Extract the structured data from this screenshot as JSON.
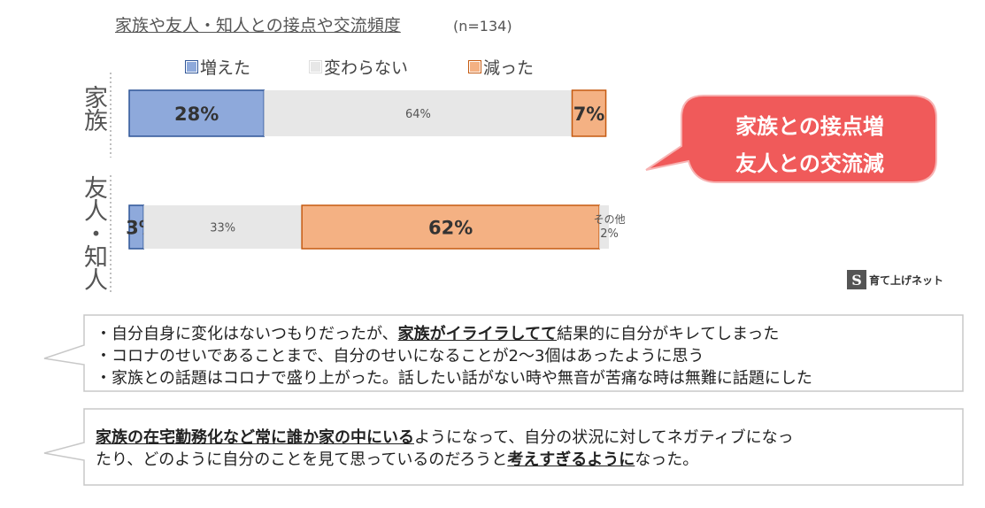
{
  "chart_data": {
    "type": "bar",
    "stacked": true,
    "orientation": "horizontal",
    "title": "家族や友人・知人との接点や交流頻度",
    "note": "(n=134)",
    "categories": [
      "家族",
      "友人・知人"
    ],
    "series": [
      {
        "name": "増えた",
        "color": "#8ea9db",
        "values": [
          28,
          3
        ],
        "labels": [
          "28%",
          "3%"
        ]
      },
      {
        "name": "変わらない",
        "color": "#e7e7e7",
        "values": [
          64,
          33
        ],
        "labels": [
          "64%",
          "33%"
        ]
      },
      {
        "name": "減った",
        "color": "#f4b183",
        "values": [
          7,
          62
        ],
        "labels": [
          "7%",
          "62%"
        ]
      },
      {
        "name": "その他",
        "color": "#e7e7e7",
        "values": [
          0,
          2
        ],
        "labels": [
          "",
          "2%"
        ]
      }
    ],
    "other_label": "その他",
    "xlim": [
      0,
      100
    ]
  },
  "callout": {
    "line1": "家族との接点増",
    "line2": "友人との交流減",
    "color": "#f05a5a"
  },
  "brand": {
    "mark": "S",
    "name": "育て上げネット"
  },
  "quotes": [
    {
      "lines": [
        [
          {
            "t": "・自分自身に変化はないつもりだったが、"
          },
          {
            "t": "家族がイライラしてて",
            "u": true
          },
          {
            "t": "結果的に自分がキレてしまった"
          }
        ],
        [
          {
            "t": "・コロナのせいであることまで、自分のせいになることが2～3個はあったように思う"
          }
        ],
        [
          {
            "t": "・家族との話題はコロナで盛り上がった。話したい話がない時や無音が苦痛な時は無難に話題にした"
          }
        ]
      ]
    },
    {
      "lines": [
        [
          {
            "t": "家族の在宅勤務化など常に誰か家の中にいる",
            "u": true
          },
          {
            "t": "ようになって、自分の状況に対してネガティブになっ"
          }
        ],
        [
          {
            "t": "たり、どのように自分のことを見て思っているのだろうと"
          },
          {
            "t": "考えすぎるように",
            "u": true
          },
          {
            "t": "なった。"
          }
        ]
      ]
    }
  ]
}
